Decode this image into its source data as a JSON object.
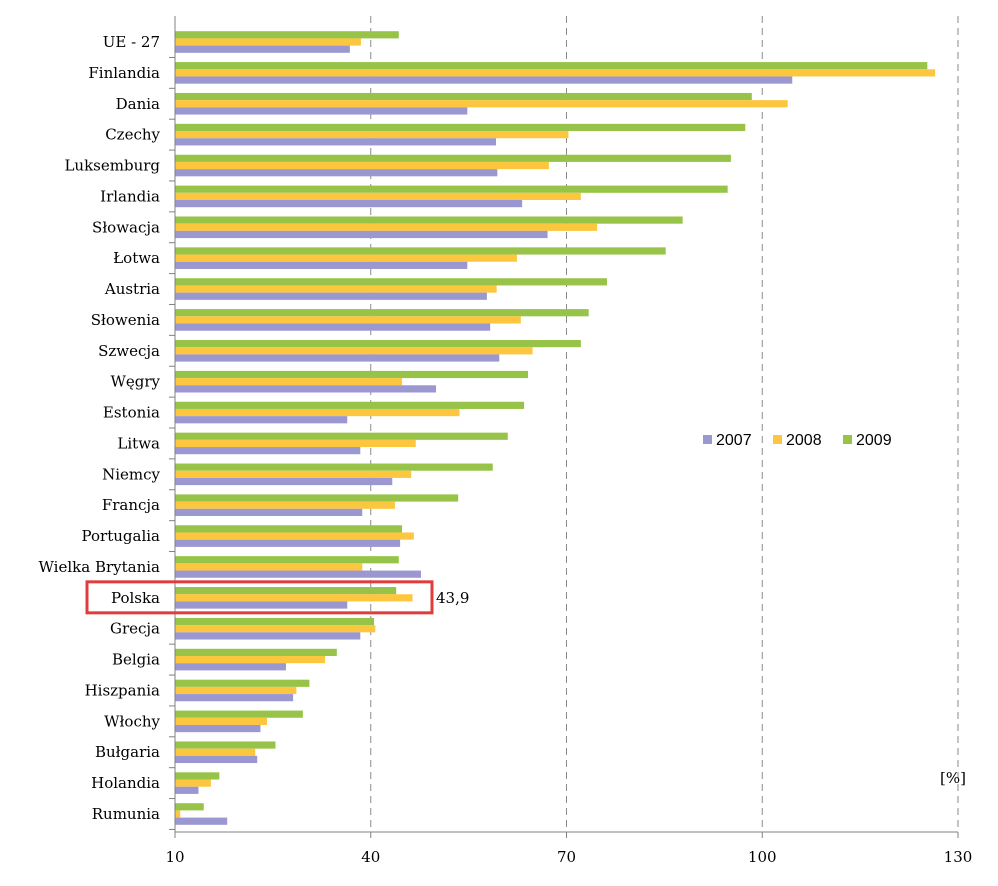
{
  "chart_data": {
    "type": "bar",
    "orientation": "horizontal",
    "categories": [
      "UE - 27",
      "Finlandia",
      "Dania",
      "Czechy",
      "Luksemburg",
      "Irlandia",
      "Słowacja",
      "Łotwa",
      "Austria",
      "Słowenia",
      "Szwecja",
      "Węgry",
      "Estonia",
      "Litwa",
      "Niemcy",
      "Francja",
      "Portugalia",
      "Wielka Brytania",
      "Polska",
      "Grecja",
      "Belgia",
      "Hiszpania",
      "Włochy",
      "Bułgaria",
      "Holandia",
      "Rumunia"
    ],
    "series": [
      {
        "name": "2007",
        "color": "#9b97d0",
        "values": [
          36.8,
          104.6,
          54.8,
          59.2,
          59.4,
          63.2,
          67.1,
          54.8,
          57.8,
          58.3,
          59.7,
          50.0,
          36.4,
          38.4,
          43.3,
          38.7,
          44.5,
          47.7,
          36.4,
          38.4,
          27.0,
          28.1,
          23.1,
          22.6,
          13.6,
          18.0
        ]
      },
      {
        "name": "2008",
        "color": "#fdc63f",
        "values": [
          38.5,
          126.5,
          103.9,
          70.3,
          67.3,
          72.2,
          74.7,
          62.4,
          59.3,
          63.0,
          64.8,
          44.8,
          53.6,
          46.9,
          46.2,
          43.7,
          46.6,
          38.7,
          46.4,
          40.7,
          33.0,
          28.6,
          24.1,
          22.3,
          15.5,
          10.8
        ]
      },
      {
        "name": "2009",
        "color": "#97c448",
        "values": [
          44.3,
          125.3,
          98.4,
          97.4,
          95.2,
          94.7,
          87.8,
          85.2,
          76.2,
          73.4,
          72.2,
          64.1,
          63.5,
          61.0,
          58.7,
          53.4,
          44.8,
          44.3,
          43.9,
          40.5,
          34.8,
          30.6,
          29.6,
          25.4,
          16.8,
          14.4
        ]
      }
    ],
    "xlim": [
      10,
      130
    ],
    "xticks": [
      10,
      40,
      70,
      100,
      130
    ],
    "unit_label": "[%]",
    "legend_position": "right-center",
    "grid": "vertical dashed",
    "annotation": {
      "category": "Polska",
      "text": "43,9",
      "highlight_color": "#e03c3c"
    }
  }
}
